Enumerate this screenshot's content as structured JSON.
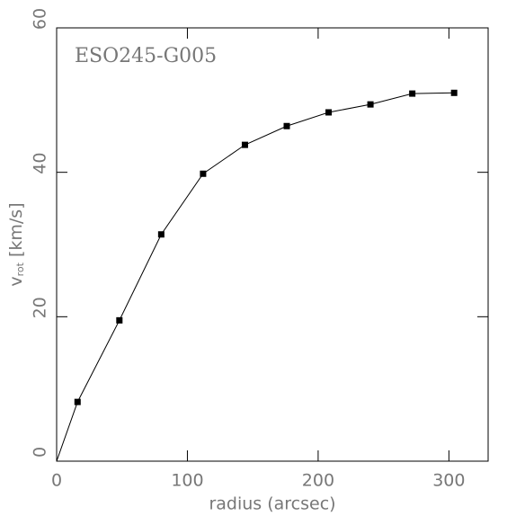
{
  "chart_data": {
    "type": "line",
    "annotation": "ESO245-G005",
    "xlabel": "radius (arcsec)",
    "ylabel": {
      "symbol": "v",
      "subscript": "rot",
      "unit": "[km/s]"
    },
    "x": [
      0,
      16,
      48,
      80,
      112,
      144,
      176,
      208,
      240,
      272,
      304
    ],
    "series": [
      {
        "color": "#000000",
        "values": [
          0,
          8.2,
          19.5,
          31.4,
          39.8,
          43.8,
          46.4,
          48.3,
          49.4,
          50.9,
          51.0
        ]
      }
    ],
    "xlim": [
      0,
      330
    ],
    "ylim": [
      0,
      60
    ],
    "xticks": [
      0,
      100,
      200,
      300
    ],
    "yticks": [
      0,
      20,
      40,
      60
    ]
  }
}
